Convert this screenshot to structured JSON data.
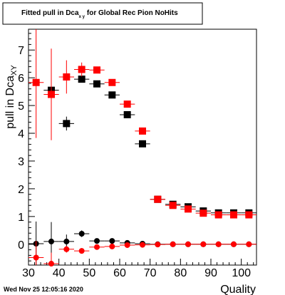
{
  "chart_data": {
    "type": "scatter",
    "title_main": "Fitted pull in Dca",
    "title_sub": "x y",
    "title_rest": "for Global Rec Pion NoHits",
    "xlabel": "Quality",
    "ylabel_main": "pull in Dca",
    "ylabel_sub": "XY",
    "xlim": [
      30,
      105
    ],
    "ylim": [
      -0.75,
      7.75
    ],
    "x_ticks": [
      30,
      40,
      50,
      60,
      70,
      80,
      90,
      100
    ],
    "y_ticks": [
      0,
      1,
      2,
      3,
      4,
      5,
      6,
      7
    ],
    "x_half_width": 2.5,
    "series": [
      {
        "marker": "square",
        "color": "#000000",
        "points": [
          {
            "x": 37.5,
            "y": 5.55,
            "err": 0.15
          },
          {
            "x": 42.5,
            "y": 4.35,
            "err": 0.25
          },
          {
            "x": 47.5,
            "y": 5.95,
            "err": 0.12
          },
          {
            "x": 52.5,
            "y": 5.78,
            "err": 0.1
          },
          {
            "x": 57.5,
            "y": 5.38,
            "err": 0.06
          },
          {
            "x": 62.5,
            "y": 4.67,
            "err": 0.05
          },
          {
            "x": 67.5,
            "y": 3.62,
            "err": 0.05
          },
          {
            "x": 72.5,
            "y": 1.62,
            "err": 0.03
          },
          {
            "x": 77.5,
            "y": 1.44,
            "err": 0.03
          },
          {
            "x": 82.5,
            "y": 1.35,
            "err": 0.03
          },
          {
            "x": 87.5,
            "y": 1.2,
            "err": 0.03
          },
          {
            "x": 92.5,
            "y": 1.13,
            "err": 0.03
          },
          {
            "x": 97.5,
            "y": 1.13,
            "err": 0.03
          },
          {
            "x": 102.5,
            "y": 1.13,
            "err": 0.03
          }
        ]
      },
      {
        "marker": "square",
        "color": "#ff0000",
        "points": [
          {
            "x": 32.5,
            "y": 5.83,
            "err": 2.0
          },
          {
            "x": 37.5,
            "y": 5.4,
            "err": 1.65
          },
          {
            "x": 42.5,
            "y": 6.03,
            "err": 0.6
          },
          {
            "x": 47.5,
            "y": 6.3,
            "err": 0.25
          },
          {
            "x": 52.5,
            "y": 6.28,
            "err": 0.12
          },
          {
            "x": 57.5,
            "y": 5.83,
            "err": 0.07
          },
          {
            "x": 62.5,
            "y": 5.05,
            "err": 0.05
          },
          {
            "x": 67.5,
            "y": 4.08,
            "err": 0.04
          },
          {
            "x": 72.5,
            "y": 1.62,
            "err": 0.03
          },
          {
            "x": 77.5,
            "y": 1.4,
            "err": 0.03
          },
          {
            "x": 82.5,
            "y": 1.27,
            "err": 0.03
          },
          {
            "x": 87.5,
            "y": 1.12,
            "err": 0.03
          },
          {
            "x": 92.5,
            "y": 1.06,
            "err": 0.03
          },
          {
            "x": 97.5,
            "y": 1.06,
            "err": 0.03
          },
          {
            "x": 102.5,
            "y": 1.06,
            "err": 0.03
          }
        ]
      },
      {
        "marker": "circle",
        "color": "#000000",
        "points": [
          {
            "x": 32.5,
            "y": 0.02,
            "err": 0.8
          },
          {
            "x": 37.5,
            "y": 0.1,
            "err": 0.7
          },
          {
            "x": 42.5,
            "y": 0.1,
            "err": 0.25
          },
          {
            "x": 47.5,
            "y": 0.38,
            "err": 0.12
          },
          {
            "x": 52.5,
            "y": 0.12,
            "err": 0.08
          },
          {
            "x": 57.5,
            "y": 0.12,
            "err": 0.05
          },
          {
            "x": 62.5,
            "y": 0.05,
            "err": 0.04
          },
          {
            "x": 67.5,
            "y": 0.02,
            "err": 0.03
          },
          {
            "x": 72.5,
            "y": 0.0,
            "err": 0.02
          },
          {
            "x": 77.5,
            "y": 0.0,
            "err": 0.02
          },
          {
            "x": 82.5,
            "y": 0.0,
            "err": 0.02
          },
          {
            "x": 87.5,
            "y": 0.0,
            "err": 0.02
          },
          {
            "x": 92.5,
            "y": 0.0,
            "err": 0.02
          },
          {
            "x": 97.5,
            "y": 0.0,
            "err": 0.02
          },
          {
            "x": 102.5,
            "y": 0.0,
            "err": 0.02
          }
        ]
      },
      {
        "marker": "circle",
        "color": "#ff0000",
        "points": [
          {
            "x": 32.5,
            "y": -0.48,
            "err": 0.6
          },
          {
            "x": 37.5,
            "y": -0.7,
            "err": 0.4
          },
          {
            "x": 42.5,
            "y": -0.18,
            "err": 0.12
          },
          {
            "x": 47.5,
            "y": -0.24,
            "err": 0.1
          },
          {
            "x": 52.5,
            "y": -0.1,
            "err": 0.05
          },
          {
            "x": 57.5,
            "y": -0.08,
            "err": 0.04
          },
          {
            "x": 62.5,
            "y": -0.03,
            "err": 0.03
          },
          {
            "x": 67.5,
            "y": -0.02,
            "err": 0.02
          },
          {
            "x": 72.5,
            "y": -0.01,
            "err": 0.02
          },
          {
            "x": 77.5,
            "y": 0.0,
            "err": 0.02
          },
          {
            "x": 82.5,
            "y": 0.0,
            "err": 0.02
          },
          {
            "x": 87.5,
            "y": 0.0,
            "err": 0.02
          },
          {
            "x": 92.5,
            "y": 0.0,
            "err": 0.02
          },
          {
            "x": 97.5,
            "y": 0.0,
            "err": 0.02
          },
          {
            "x": 102.5,
            "y": 0.0,
            "err": 0.02
          }
        ]
      }
    ]
  },
  "footer": {
    "timestamp": "Wed Nov 25 12:05:16 2020"
  }
}
